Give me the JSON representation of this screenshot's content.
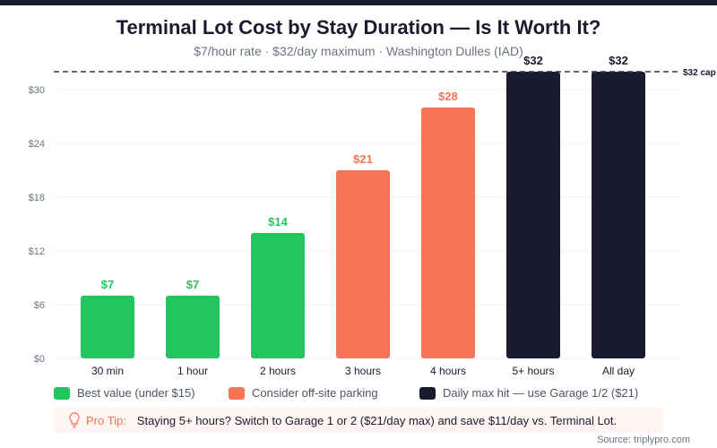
{
  "title": "Terminal Lot Cost by Stay Duration — Is It Worth It?",
  "subtitle": "$7/hour rate · $32/day maximum · Washington Dulles (IAD)",
  "colors": {
    "green": "#22c55e",
    "orange": "#f97355",
    "dark": "#1a1b2e"
  },
  "chart_data": {
    "type": "bar",
    "categories": [
      "30 min",
      "1 hour",
      "2 hours",
      "3 hours",
      "4 hours",
      "5+ hours",
      "All day"
    ],
    "values": [
      7,
      7,
      14,
      21,
      28,
      32,
      32
    ],
    "data_labels": [
      "$7",
      "$7",
      "$14",
      "$21",
      "$28",
      "$32",
      "$32"
    ],
    "bar_colors": [
      "green",
      "green",
      "green",
      "orange",
      "orange",
      "dark",
      "dark"
    ],
    "ylim": [
      0,
      32
    ],
    "yticks": [
      0,
      6,
      12,
      18,
      24,
      30
    ],
    "ytick_labels": [
      "$0",
      "$6",
      "$12",
      "$18",
      "$24",
      "$30"
    ],
    "reference_line": {
      "value": 32,
      "label": "$32 cap",
      "style": "dashed"
    },
    "grid": true,
    "legend_placement": "bottom"
  },
  "legend": [
    {
      "label": "Best value (under $15)",
      "color": "green"
    },
    {
      "label": "Consider off-site parking",
      "color": "orange"
    },
    {
      "label": "Daily max hit — use Garage 1/2 ($21)",
      "color": "dark"
    }
  ],
  "tip": {
    "icon": "lightbulb-icon",
    "label": "Pro Tip:",
    "text": "Staying 5+ hours? Switch to Garage 1 or 2 ($21/day max) and save $11/day vs. Terminal Lot."
  },
  "source": "Source: triplypro.com"
}
